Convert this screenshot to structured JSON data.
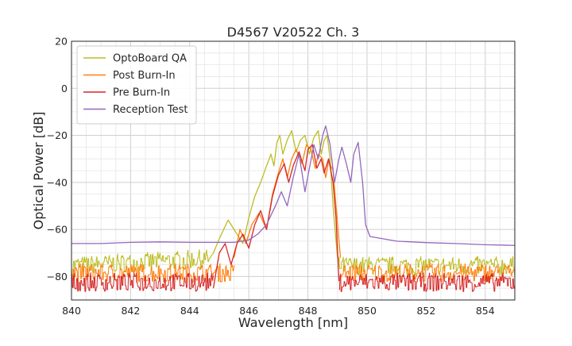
{
  "chart_data": {
    "type": "line",
    "title": "D4567 V20522 Ch. 3",
    "xlabel": "Wavelength [nm]",
    "ylabel": "Optical Power [dB]",
    "xlim": [
      840,
      855
    ],
    "ylim": [
      -90,
      20
    ],
    "xticks": [
      840,
      842,
      844,
      846,
      848,
      850,
      852,
      854
    ],
    "yticks": [
      20,
      0,
      -20,
      -40,
      -60,
      -80
    ],
    "xtick_labels": [
      "840",
      "842",
      "844",
      "846",
      "848",
      "850",
      "852",
      "854"
    ],
    "ytick_labels": [
      "20",
      "0",
      "−20",
      "−40",
      "−60",
      "−80"
    ],
    "grid": true,
    "minor_grid": true,
    "legend_position": "top-left",
    "series": [
      {
        "name": "OptoBoard QA",
        "color": "#bcbd22",
        "noise_floor": [
          [
            840,
            -77
          ],
          [
            844.5,
            -74
          ],
          [
            844.8,
            -74
          ]
        ],
        "points": [
          [
            844.8,
            -70
          ],
          [
            845.0,
            -64
          ],
          [
            845.3,
            -56
          ],
          [
            845.6,
            -62
          ],
          [
            845.8,
            -66
          ],
          [
            846.0,
            -55
          ],
          [
            846.2,
            -46
          ],
          [
            846.4,
            -40
          ],
          [
            846.6,
            -33
          ],
          [
            846.75,
            -28
          ],
          [
            846.85,
            -33
          ],
          [
            846.95,
            -23
          ],
          [
            847.05,
            -20
          ],
          [
            847.15,
            -28
          ],
          [
            847.3,
            -22
          ],
          [
            847.45,
            -18
          ],
          [
            847.6,
            -27
          ],
          [
            847.75,
            -22
          ],
          [
            847.9,
            -20
          ],
          [
            848.05,
            -28
          ],
          [
            848.2,
            -21
          ],
          [
            848.35,
            -18
          ],
          [
            848.45,
            -28
          ],
          [
            848.55,
            -22
          ],
          [
            848.65,
            -20
          ],
          [
            848.75,
            -30
          ],
          [
            848.85,
            -50
          ],
          [
            849.0,
            -72
          ]
        ],
        "noise_floor_after": [
          [
            849.0,
            -77
          ],
          [
            855,
            -77
          ]
        ]
      },
      {
        "name": "Post Burn-In",
        "color": "#ff7f0e",
        "noise_floor": [
          [
            840,
            -80
          ],
          [
            845.5,
            -80
          ]
        ],
        "points": [
          [
            845.5,
            -72
          ],
          [
            845.7,
            -60
          ],
          [
            845.9,
            -66
          ],
          [
            846.1,
            -58
          ],
          [
            846.35,
            -53
          ],
          [
            846.6,
            -60
          ],
          [
            846.8,
            -45
          ],
          [
            847.0,
            -36
          ],
          [
            847.15,
            -30
          ],
          [
            847.3,
            -38
          ],
          [
            847.45,
            -30
          ],
          [
            847.6,
            -26
          ],
          [
            847.8,
            -32
          ],
          [
            847.95,
            -24
          ],
          [
            848.1,
            -26
          ],
          [
            848.25,
            -34
          ],
          [
            848.35,
            -28
          ],
          [
            848.5,
            -30
          ],
          [
            848.6,
            -38
          ],
          [
            848.7,
            -31
          ],
          [
            848.85,
            -35
          ],
          [
            848.95,
            -50
          ],
          [
            849.1,
            -72
          ]
        ],
        "noise_floor_after": [
          [
            849.1,
            -80
          ],
          [
            855,
            -80
          ]
        ]
      },
      {
        "name": "Pre Burn-In",
        "color": "#d62728",
        "noise_floor": [
          [
            840,
            -84
          ],
          [
            844.8,
            -84
          ]
        ],
        "points": [
          [
            844.8,
            -85
          ],
          [
            845.0,
            -70
          ],
          [
            845.2,
            -66
          ],
          [
            845.4,
            -75
          ],
          [
            845.6,
            -66
          ],
          [
            845.8,
            -62
          ],
          [
            846.0,
            -68
          ],
          [
            846.2,
            -58
          ],
          [
            846.4,
            -52
          ],
          [
            846.6,
            -60
          ],
          [
            846.8,
            -46
          ],
          [
            847.0,
            -37
          ],
          [
            847.2,
            -32
          ],
          [
            847.35,
            -40
          ],
          [
            847.5,
            -33
          ],
          [
            847.7,
            -27
          ],
          [
            847.9,
            -35
          ],
          [
            848.0,
            -26
          ],
          [
            848.15,
            -24
          ],
          [
            848.3,
            -34
          ],
          [
            848.45,
            -30
          ],
          [
            848.55,
            -36
          ],
          [
            848.7,
            -30
          ],
          [
            848.85,
            -40
          ],
          [
            848.95,
            -55
          ],
          [
            849.05,
            -82
          ]
        ],
        "noise_floor_after": [
          [
            849.05,
            -84
          ],
          [
            855,
            -84
          ]
        ]
      },
      {
        "name": "Reception Test",
        "color": "#9467bd",
        "points": [
          [
            840,
            -66
          ],
          [
            841,
            -66
          ],
          [
            842,
            -65.5
          ],
          [
            843,
            -65.3
          ],
          [
            844,
            -65.5
          ],
          [
            845,
            -65.5
          ],
          [
            845.5,
            -65.5
          ],
          [
            846,
            -64.5
          ],
          [
            846.3,
            -62
          ],
          [
            846.6,
            -58
          ],
          [
            846.9,
            -50
          ],
          [
            847.1,
            -44
          ],
          [
            847.3,
            -50
          ],
          [
            847.5,
            -38
          ],
          [
            847.7,
            -28
          ],
          [
            847.8,
            -36
          ],
          [
            847.9,
            -44
          ],
          [
            848.05,
            -34
          ],
          [
            848.2,
            -24
          ],
          [
            848.35,
            -30
          ],
          [
            848.5,
            -20
          ],
          [
            848.6,
            -16
          ],
          [
            848.75,
            -24
          ],
          [
            848.9,
            -40
          ],
          [
            849.05,
            -30
          ],
          [
            849.15,
            -25
          ],
          [
            849.3,
            -32
          ],
          [
            849.45,
            -40
          ],
          [
            849.55,
            -28
          ],
          [
            849.7,
            -23
          ],
          [
            849.85,
            -40
          ],
          [
            849.95,
            -58
          ],
          [
            850.1,
            -63
          ],
          [
            851,
            -65
          ],
          [
            852,
            -65.6
          ],
          [
            853,
            -66
          ],
          [
            854,
            -66.5
          ],
          [
            855,
            -66.8
          ]
        ]
      }
    ]
  }
}
